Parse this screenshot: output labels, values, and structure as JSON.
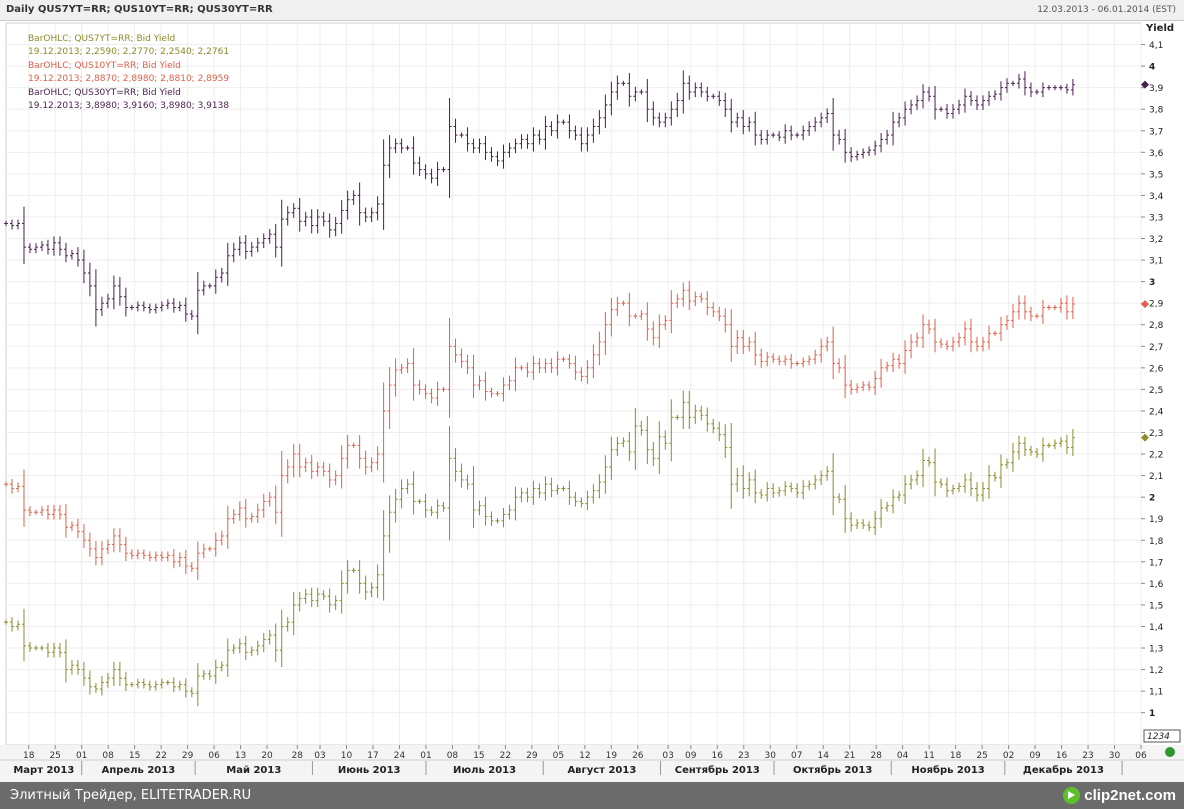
{
  "header": {
    "title": "Daily QUS7YT=RR; QUS10YT=RR; QUS30YT=RR",
    "date_range": "12.03.2013 - 06.01.2014 (EST)"
  },
  "footer": {
    "source": "Элитный Трейдер, ELITETRADER.RU",
    "brand": "clip2net.com"
  },
  "colors": {
    "qus7": "#8c8c2a",
    "qus10": "#e0604a",
    "qus30": "#4a1e4e",
    "grid": "#eeeeee",
    "axis": "#333333"
  },
  "chart_data": {
    "type": "ohlc_bar",
    "ylabel": "Yield",
    "ylim": [
      0.85,
      4.2
    ],
    "y_ticks": [
      1,
      1.1,
      1.2,
      1.3,
      1.4,
      1.5,
      1.6,
      1.7,
      1.8,
      1.9,
      2,
      2.1,
      2.2,
      2.3,
      2.4,
      2.5,
      2.6,
      2.7,
      2.8,
      2.9,
      3,
      3.1,
      3.2,
      3.3,
      3.4,
      3.5,
      3.6,
      3.7,
      3.8,
      3.9,
      4,
      4.1
    ],
    "y_tick_labels": [
      "1",
      "1,1",
      "1,2",
      "1,3",
      "1,4",
      "1,5",
      "1,6",
      "1,7",
      "1,8",
      "1,9",
      "2",
      "2,1",
      "2,2",
      "2,3",
      "2,4",
      "2,5",
      "2,6",
      "2,7",
      "2,8",
      "2,9",
      "3",
      "3,1",
      "3,2",
      "3,3",
      "3,4",
      "3,5",
      "3,6",
      "3,7",
      "3,8",
      "3,9",
      "4",
      "4,1"
    ],
    "y_major_ticks": [
      "1",
      "2",
      "3",
      "4"
    ],
    "price_box": "1234",
    "x_range": [
      "2013-03-12",
      "2014-01-06"
    ],
    "x_ticks": [
      {
        "date": "2013-03-18",
        "label": "18"
      },
      {
        "date": "2013-03-25",
        "label": "25"
      },
      {
        "date": "2013-04-01",
        "label": "01"
      },
      {
        "date": "2013-04-08",
        "label": "08"
      },
      {
        "date": "2013-04-15",
        "label": "15"
      },
      {
        "date": "2013-04-22",
        "label": "22"
      },
      {
        "date": "2013-04-29",
        "label": "29"
      },
      {
        "date": "2013-05-06",
        "label": "06"
      },
      {
        "date": "2013-05-13",
        "label": "13"
      },
      {
        "date": "2013-05-20",
        "label": "20"
      },
      {
        "date": "2013-05-28",
        "label": "28"
      },
      {
        "date": "2013-06-03",
        "label": "03"
      },
      {
        "date": "2013-06-10",
        "label": "10"
      },
      {
        "date": "2013-06-17",
        "label": "17"
      },
      {
        "date": "2013-06-24",
        "label": "24"
      },
      {
        "date": "2013-07-01",
        "label": "01"
      },
      {
        "date": "2013-07-08",
        "label": "08"
      },
      {
        "date": "2013-07-15",
        "label": "15"
      },
      {
        "date": "2013-07-22",
        "label": "22"
      },
      {
        "date": "2013-07-29",
        "label": "29"
      },
      {
        "date": "2013-08-05",
        "label": "05"
      },
      {
        "date": "2013-08-12",
        "label": "12"
      },
      {
        "date": "2013-08-19",
        "label": "19"
      },
      {
        "date": "2013-08-26",
        "label": "26"
      },
      {
        "date": "2013-09-03",
        "label": "03"
      },
      {
        "date": "2013-09-09",
        "label": "09"
      },
      {
        "date": "2013-09-16",
        "label": "16"
      },
      {
        "date": "2013-09-23",
        "label": "23"
      },
      {
        "date": "2013-09-30",
        "label": "30"
      },
      {
        "date": "2013-10-07",
        "label": "07"
      },
      {
        "date": "2013-10-14",
        "label": "14"
      },
      {
        "date": "2013-10-21",
        "label": "21"
      },
      {
        "date": "2013-10-28",
        "label": "28"
      },
      {
        "date": "2013-11-04",
        "label": "04"
      },
      {
        "date": "2013-11-11",
        "label": "11"
      },
      {
        "date": "2013-11-18",
        "label": "18"
      },
      {
        "date": "2013-11-25",
        "label": "25"
      },
      {
        "date": "2013-12-02",
        "label": "02"
      },
      {
        "date": "2013-12-09",
        "label": "09"
      },
      {
        "date": "2013-12-16",
        "label": "16"
      },
      {
        "date": "2013-12-23",
        "label": "23"
      },
      {
        "date": "2013-12-30",
        "label": "30"
      },
      {
        "date": "2014-01-06",
        "label": "06"
      }
    ],
    "months": [
      "Март 2013",
      "Апрель 2013",
      "Май 2013",
      "Июнь 2013",
      "Июль 2013",
      "Август 2013",
      "Сентябрь 2013",
      "Октябрь 2013",
      "Ноябрь 2013",
      "Декабрь 2013"
    ],
    "series": [
      {
        "id": "qus7",
        "name": "BarOHLC; QUS7YT=RR; Bid Yield",
        "last_label": "19.12.2013; 2,2590; 2,2770; 2,2540; 2,2761",
        "last_close": 2.2761,
        "closes": [
          1.42,
          1.4,
          1.41,
          1.31,
          1.3,
          1.3,
          1.3,
          1.28,
          1.3,
          1.28,
          1.2,
          1.22,
          1.2,
          1.16,
          1.12,
          1.11,
          1.14,
          1.16,
          1.2,
          1.16,
          1.13,
          1.13,
          1.14,
          1.13,
          1.12,
          1.13,
          1.14,
          1.14,
          1.12,
          1.13,
          1.1,
          1.09,
          1.17,
          1.18,
          1.17,
          1.21,
          1.22,
          1.29,
          1.3,
          1.32,
          1.28,
          1.29,
          1.31,
          1.34,
          1.36,
          1.29,
          1.4,
          1.42,
          1.5,
          1.53,
          1.55,
          1.52,
          1.55,
          1.54,
          1.5,
          1.52,
          1.6,
          1.66,
          1.66,
          1.6,
          1.56,
          1.58,
          1.64,
          1.82,
          1.93,
          1.99,
          2.04,
          2.06,
          1.98,
          1.98,
          1.94,
          1.93,
          1.96,
          1.95,
          2.18,
          2.12,
          2.08,
          2.06,
          1.94,
          1.96,
          1.91,
          1.89,
          1.89,
          1.92,
          1.94,
          2.0,
          2.02,
          2.0,
          2.04,
          2.02,
          2.06,
          2.03,
          2.04,
          2.04,
          2.0,
          1.98,
          1.97,
          2.0,
          2.03,
          2.07,
          2.14,
          2.22,
          2.25,
          2.26,
          2.21,
          2.33,
          2.31,
          2.22,
          2.18,
          2.28,
          2.25,
          2.37,
          2.37,
          2.44,
          2.37,
          2.4,
          2.38,
          2.34,
          2.32,
          2.29,
          2.23,
          2.06,
          2.1,
          2.04,
          2.08,
          2.02,
          2.01,
          2.04,
          2.02,
          2.03,
          2.05,
          2.04,
          2.02,
          2.05,
          2.06,
          2.08,
          2.1,
          2.12,
          2.0,
          1.99,
          1.9,
          1.87,
          1.88,
          1.87,
          1.86,
          1.9,
          1.95,
          1.96,
          2.0,
          2.01,
          2.06,
          2.08,
          2.1,
          2.17,
          2.16,
          2.07,
          2.06,
          2.03,
          2.04,
          2.05,
          2.08,
          2.04,
          2.01,
          2.04,
          2.1,
          2.09,
          2.15,
          2.16,
          2.21,
          2.25,
          2.22,
          2.21,
          2.2,
          2.24,
          2.24,
          2.25,
          2.26,
          2.23,
          2.2761
        ]
      },
      {
        "id": "qus10",
        "name": "BarOHLC; QUS10YT=RR; Bid Yield",
        "last_label": "19.12.2013; 2,8870; 2,8980; 2,8810; 2,8959",
        "last_close": 2.8959,
        "closes": [
          2.06,
          2.04,
          2.05,
          1.94,
          1.93,
          1.93,
          1.94,
          1.92,
          1.94,
          1.92,
          1.86,
          1.87,
          1.84,
          1.8,
          1.76,
          1.72,
          1.76,
          1.78,
          1.82,
          1.78,
          1.74,
          1.73,
          1.74,
          1.73,
          1.72,
          1.73,
          1.72,
          1.73,
          1.7,
          1.72,
          1.68,
          1.67,
          1.74,
          1.76,
          1.76,
          1.8,
          1.82,
          1.9,
          1.92,
          1.95,
          1.9,
          1.91,
          1.94,
          1.98,
          2.0,
          1.93,
          2.1,
          2.14,
          2.2,
          2.14,
          2.16,
          2.12,
          2.14,
          2.12,
          2.08,
          2.1,
          2.18,
          2.24,
          2.24,
          2.18,
          2.14,
          2.16,
          2.2,
          2.4,
          2.52,
          2.59,
          2.6,
          2.62,
          2.52,
          2.5,
          2.48,
          2.46,
          2.5,
          2.5,
          2.7,
          2.66,
          2.63,
          2.6,
          2.52,
          2.54,
          2.49,
          2.48,
          2.48,
          2.52,
          2.54,
          2.6,
          2.6,
          2.58,
          2.62,
          2.6,
          2.62,
          2.6,
          2.64,
          2.64,
          2.62,
          2.58,
          2.56,
          2.6,
          2.66,
          2.72,
          2.8,
          2.87,
          2.9,
          2.9,
          2.84,
          2.84,
          2.85,
          2.78,
          2.74,
          2.8,
          2.82,
          2.9,
          2.92,
          2.96,
          2.91,
          2.93,
          2.92,
          2.88,
          2.86,
          2.84,
          2.8,
          2.7,
          2.74,
          2.7,
          2.72,
          2.66,
          2.63,
          2.65,
          2.64,
          2.63,
          2.64,
          2.62,
          2.62,
          2.63,
          2.64,
          2.66,
          2.7,
          2.72,
          2.62,
          2.6,
          2.52,
          2.5,
          2.51,
          2.52,
          2.51,
          2.55,
          2.6,
          2.61,
          2.64,
          2.62,
          2.68,
          2.72,
          2.74,
          2.8,
          2.78,
          2.72,
          2.71,
          2.7,
          2.72,
          2.74,
          2.78,
          2.72,
          2.7,
          2.72,
          2.76,
          2.76,
          2.8,
          2.82,
          2.86,
          2.9,
          2.86,
          2.84,
          2.84,
          2.88,
          2.88,
          2.88,
          2.9,
          2.86,
          2.8959
        ]
      },
      {
        "id": "qus30",
        "name": "BarOHLC; QUS30YT=RR; Bid Yield",
        "last_label": "19.12.2013; 3,8980; 3,9160; 3,8980; 3,9138",
        "last_close": 3.9138,
        "closes": [
          3.27,
          3.26,
          3.27,
          3.16,
          3.15,
          3.16,
          3.17,
          3.15,
          3.18,
          3.15,
          3.12,
          3.13,
          3.1,
          3.04,
          2.98,
          2.87,
          2.9,
          2.92,
          2.98,
          2.93,
          2.88,
          2.88,
          2.89,
          2.88,
          2.87,
          2.88,
          2.89,
          2.9,
          2.88,
          2.89,
          2.85,
          2.84,
          2.96,
          2.98,
          2.98,
          3.02,
          3.04,
          3.12,
          3.15,
          3.18,
          3.14,
          3.16,
          3.18,
          3.2,
          3.22,
          3.16,
          3.29,
          3.32,
          3.34,
          3.28,
          3.3,
          3.26,
          3.3,
          3.28,
          3.24,
          3.27,
          3.33,
          3.38,
          3.4,
          3.32,
          3.3,
          3.32,
          3.36,
          3.54,
          3.62,
          3.64,
          3.62,
          3.62,
          3.55,
          3.52,
          3.5,
          3.48,
          3.52,
          3.52,
          3.72,
          3.68,
          3.68,
          3.64,
          3.62,
          3.64,
          3.6,
          3.58,
          3.56,
          3.6,
          3.62,
          3.64,
          3.66,
          3.64,
          3.68,
          3.66,
          3.72,
          3.7,
          3.74,
          3.74,
          3.7,
          3.68,
          3.64,
          3.68,
          3.72,
          3.76,
          3.82,
          3.88,
          3.92,
          3.92,
          3.86,
          3.88,
          3.88,
          3.8,
          3.76,
          3.74,
          3.76,
          3.8,
          3.84,
          3.92,
          3.88,
          3.9,
          3.88,
          3.86,
          3.86,
          3.84,
          3.8,
          3.74,
          3.76,
          3.72,
          3.74,
          3.68,
          3.66,
          3.68,
          3.68,
          3.67,
          3.7,
          3.68,
          3.68,
          3.7,
          3.72,
          3.74,
          3.76,
          3.78,
          3.68,
          3.66,
          3.6,
          3.58,
          3.59,
          3.6,
          3.61,
          3.63,
          3.66,
          3.68,
          3.74,
          3.76,
          3.8,
          3.82,
          3.84,
          3.88,
          3.86,
          3.8,
          3.8,
          3.78,
          3.8,
          3.82,
          3.86,
          3.84,
          3.82,
          3.84,
          3.86,
          3.87,
          3.9,
          3.92,
          3.92,
          3.94,
          3.9,
          3.88,
          3.88,
          3.9,
          3.9,
          3.9,
          3.9,
          3.89,
          3.9138
        ]
      }
    ]
  }
}
